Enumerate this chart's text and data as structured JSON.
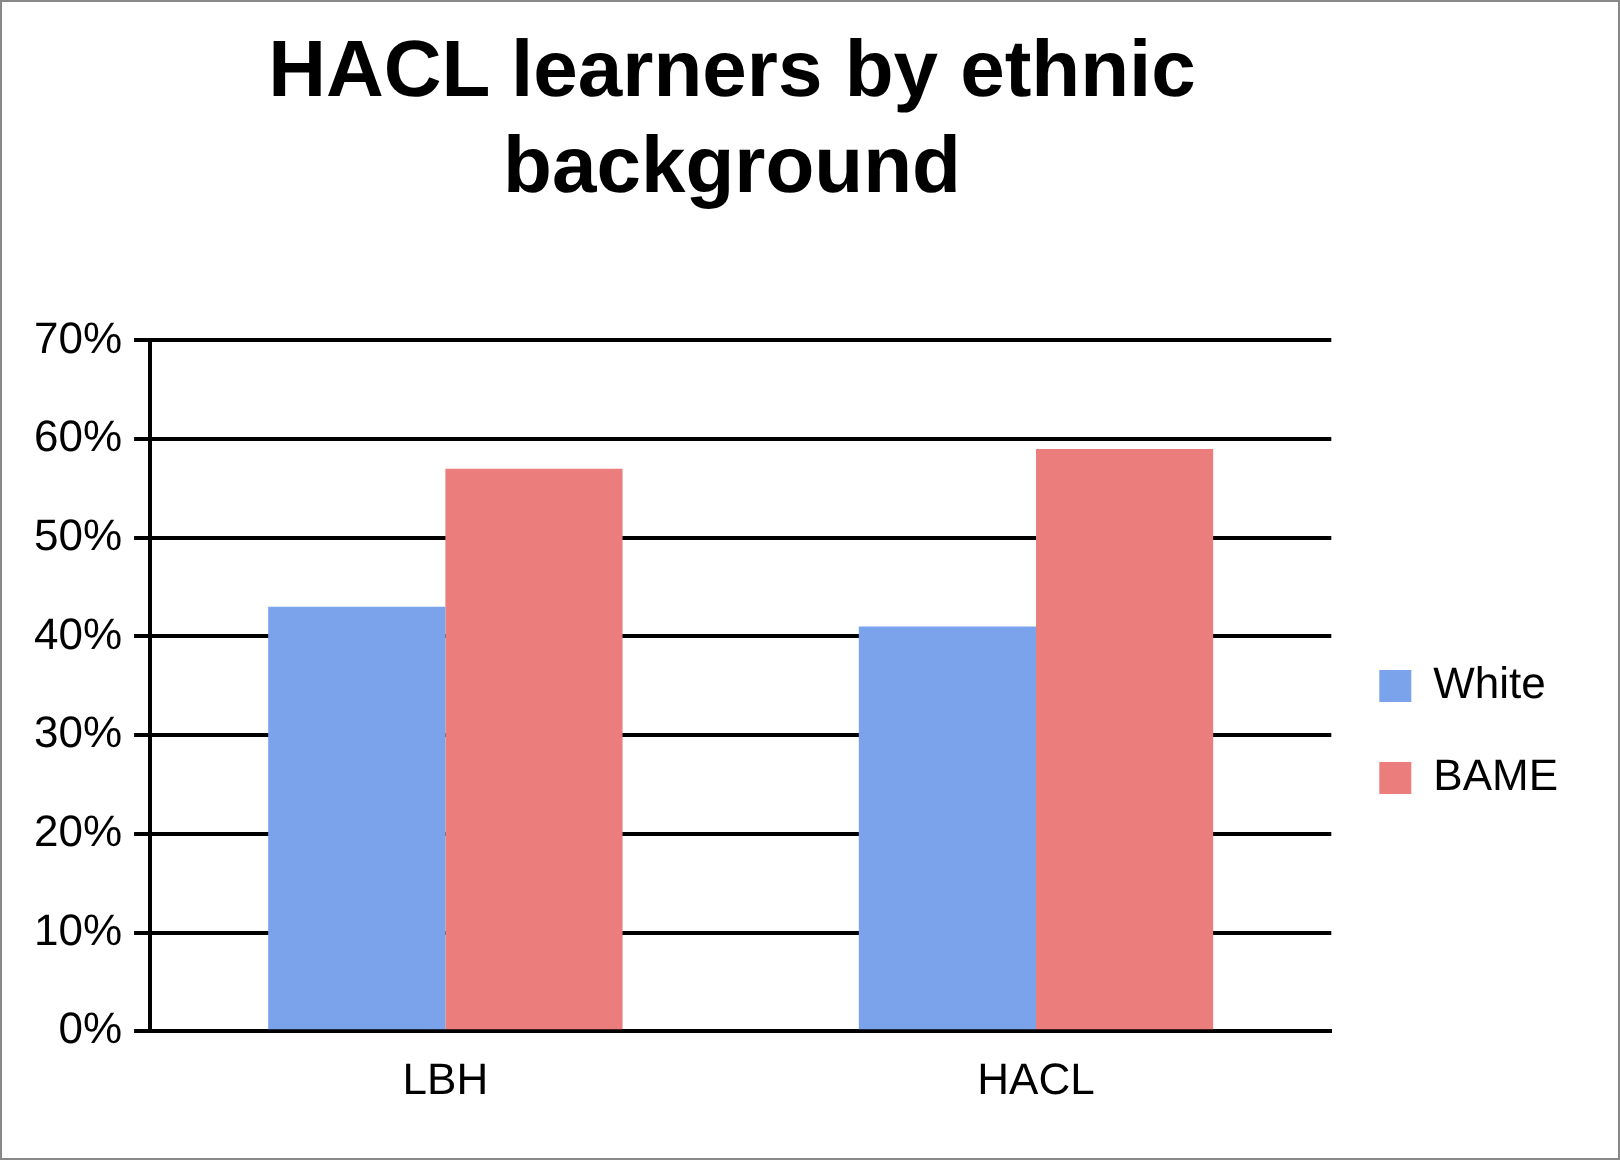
{
  "chart_data": {
    "type": "bar",
    "title": "HACL learners by ethnic background",
    "categories": [
      "LBH",
      "HACL"
    ],
    "series": [
      {
        "name": "White",
        "color": "#7aa3ec",
        "values": [
          43,
          41
        ]
      },
      {
        "name": "BAME",
        "color": "#ec7d7d",
        "values": [
          57,
          59
        ]
      }
    ],
    "ylim": [
      0,
      70
    ],
    "yticks": [
      {
        "value": 0,
        "label": "0%"
      },
      {
        "value": 10,
        "label": "10%"
      },
      {
        "value": 20,
        "label": "20%"
      },
      {
        "value": 30,
        "label": "30%"
      },
      {
        "value": 40,
        "label": "40%"
      },
      {
        "value": 50,
        "label": "50%"
      },
      {
        "value": 60,
        "label": "60%"
      },
      {
        "value": 70,
        "label": "70%"
      }
    ],
    "grid": "y",
    "legend": "right"
  }
}
